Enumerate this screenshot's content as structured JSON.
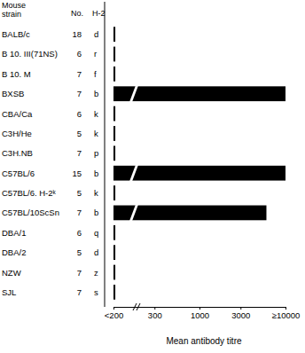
{
  "chart_data": {
    "type": "bar",
    "orientation": "horizontal",
    "log": "x",
    "grid": false,
    "row_header": "Mouse strain",
    "count_header": "No.",
    "h2_header": "H-2",
    "categories": [
      "BALB/c",
      "B 10. III(71NS)",
      "B 10. M",
      "BXSB",
      "CBA/Ca",
      "C3H/He",
      "C3H.NB",
      "C57BL/6",
      "C57BL/6. H-2ᵏ",
      "C57BL/10ScSn",
      "DBA/1",
      "DBA/2",
      "NZW",
      "SJL"
    ],
    "counts": [
      18,
      6,
      7,
      7,
      6,
      5,
      7,
      15,
      5,
      7,
      6,
      5,
      7,
      7
    ],
    "h2": [
      "d",
      "r",
      "f",
      "b",
      "k",
      "k",
      "p",
      "b",
      "k",
      "b",
      "q",
      "d",
      "z",
      "s"
    ],
    "values": [
      105,
      105,
      105,
      10000,
      105,
      105,
      105,
      10000,
      105,
      6000,
      105,
      105,
      105,
      105
    ],
    "color": "#000000",
    "x_label": "Mean antibody titre",
    "xlim": [
      100,
      10000
    ],
    "xticks": [
      {
        "value": 100,
        "label": "<200"
      },
      300,
      1000,
      3000,
      {
        "value": 10000,
        "label": "≥10000"
      }
    ]
  }
}
